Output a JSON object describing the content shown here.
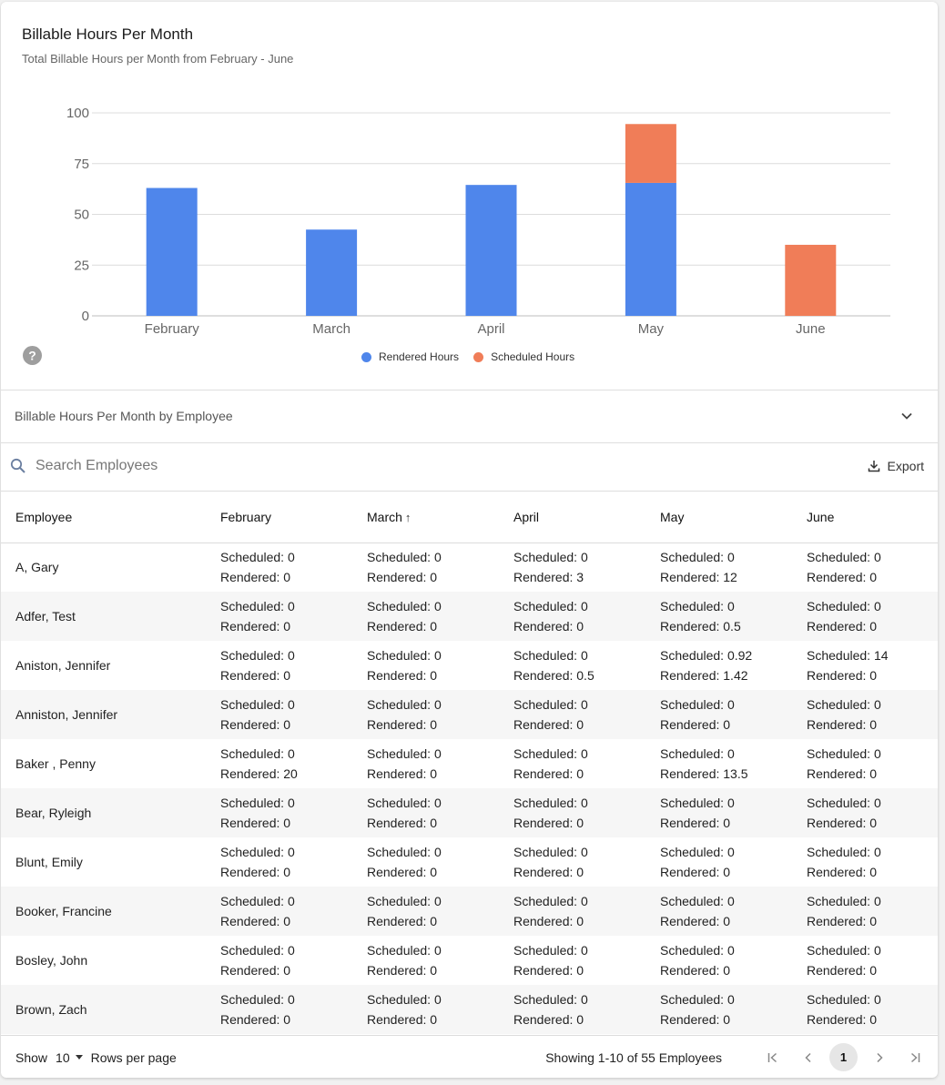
{
  "chart_data": {
    "type": "bar",
    "stacked": true,
    "title": "Billable Hours Per Month",
    "subtitle": "Total Billable Hours per Month from February - June",
    "categories": [
      "February",
      "March",
      "April",
      "May",
      "June"
    ],
    "series": [
      {
        "name": "Rendered Hours",
        "color": "#4f86eb",
        "values": [
          63,
          42.5,
          64.5,
          65.5,
          0
        ]
      },
      {
        "name": "Scheduled Hours",
        "color": "#f07d58",
        "values": [
          0,
          0,
          0,
          29,
          35
        ]
      }
    ],
    "yticks": [
      0,
      25,
      50,
      75,
      100
    ],
    "ylim": [
      0,
      100
    ],
    "grid": true,
    "legend_position": "bottom"
  },
  "section": {
    "label": "Billable Hours Per Month by Employee"
  },
  "search": {
    "placeholder": "Search Employees"
  },
  "export": {
    "label": "Export"
  },
  "table": {
    "columns": [
      "Employee",
      "February",
      "March",
      "April",
      "May",
      "June"
    ],
    "sorted_column": "March",
    "sort_direction": "ascending",
    "scheduled_prefix": "Scheduled:",
    "rendered_prefix": "Rendered:",
    "rows": [
      {
        "name": "A, Gary",
        "months": [
          [
            0,
            0
          ],
          [
            0,
            0
          ],
          [
            0,
            3
          ],
          [
            0,
            12
          ],
          [
            0,
            0
          ]
        ]
      },
      {
        "name": "Adfer, Test",
        "months": [
          [
            0,
            0
          ],
          [
            0,
            0
          ],
          [
            0,
            0
          ],
          [
            0,
            0.5
          ],
          [
            0,
            0
          ]
        ]
      },
      {
        "name": "Aniston, Jennifer",
        "months": [
          [
            0,
            0
          ],
          [
            0,
            0
          ],
          [
            0,
            0.5
          ],
          [
            0.92,
            1.42
          ],
          [
            14,
            0
          ]
        ]
      },
      {
        "name": "Anniston, Jennifer",
        "months": [
          [
            0,
            0
          ],
          [
            0,
            0
          ],
          [
            0,
            0
          ],
          [
            0,
            0
          ],
          [
            0,
            0
          ]
        ]
      },
      {
        "name": "Baker , Penny",
        "months": [
          [
            0,
            20
          ],
          [
            0,
            0
          ],
          [
            0,
            0
          ],
          [
            0,
            13.5
          ],
          [
            0,
            0
          ]
        ]
      },
      {
        "name": "Bear, Ryleigh",
        "months": [
          [
            0,
            0
          ],
          [
            0,
            0
          ],
          [
            0,
            0
          ],
          [
            0,
            0
          ],
          [
            0,
            0
          ]
        ]
      },
      {
        "name": "Blunt, Emily",
        "months": [
          [
            0,
            0
          ],
          [
            0,
            0
          ],
          [
            0,
            0
          ],
          [
            0,
            0
          ],
          [
            0,
            0
          ]
        ]
      },
      {
        "name": "Booker, Francine",
        "months": [
          [
            0,
            0
          ],
          [
            0,
            0
          ],
          [
            0,
            0
          ],
          [
            0,
            0
          ],
          [
            0,
            0
          ]
        ]
      },
      {
        "name": "Bosley, John",
        "months": [
          [
            0,
            0
          ],
          [
            0,
            0
          ],
          [
            0,
            0
          ],
          [
            0,
            0
          ],
          [
            0,
            0
          ]
        ]
      },
      {
        "name": "Brown, Zach",
        "months": [
          [
            0,
            0
          ],
          [
            0,
            0
          ],
          [
            0,
            0
          ],
          [
            0,
            0
          ],
          [
            0,
            0
          ]
        ]
      }
    ]
  },
  "footer": {
    "show_label": "Show",
    "rows_per_page": "10",
    "rows_per_page_label": "Rows per page",
    "showing_text": "Showing 1-10 of 55 Employees",
    "current_page": "1"
  },
  "icons": {
    "help": "help-icon",
    "expand": "chevron-down-icon",
    "search": "search-icon",
    "export": "download-icon",
    "first": "first-page-icon",
    "prev": "chevron-left-icon",
    "next": "chevron-right-icon",
    "last": "last-page-icon"
  }
}
